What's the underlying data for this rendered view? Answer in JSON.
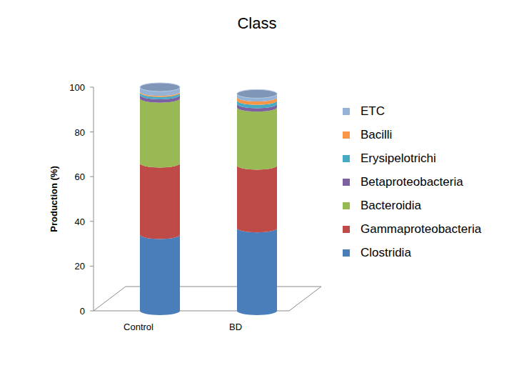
{
  "chart_data": {
    "type": "bar",
    "title": "Class",
    "y_label": "Production (%)",
    "categories": [
      "Control",
      "BD"
    ],
    "stacked": true,
    "legend": "right",
    "grid": false,
    "ylim": [
      0,
      100
    ],
    "yticks": [
      0,
      20,
      40,
      60,
      80,
      100
    ],
    "series": [
      {
        "name": "Clostridia",
        "color": "#4a7ebb",
        "values": [
          34,
          37
        ]
      },
      {
        "name": "Gammaproteobacteria",
        "color": "#be4b48",
        "values": [
          32,
          28
        ]
      },
      {
        "name": "Bacteroidia",
        "color": "#98b954",
        "values": [
          29,
          26
        ]
      },
      {
        "name": "Betaproteobacteria",
        "color": "#7d60a0",
        "values": [
          1.5,
          1.5
        ]
      },
      {
        "name": "Erysipelotrichi",
        "color": "#46aac5",
        "values": [
          1,
          1.5
        ]
      },
      {
        "name": "Bacilli",
        "color": "#f79646",
        "values": [
          0.5,
          1.5
        ]
      },
      {
        "name": "ETC",
        "color": "#95b3d7",
        "values": [
          2,
          1.5
        ]
      }
    ]
  }
}
